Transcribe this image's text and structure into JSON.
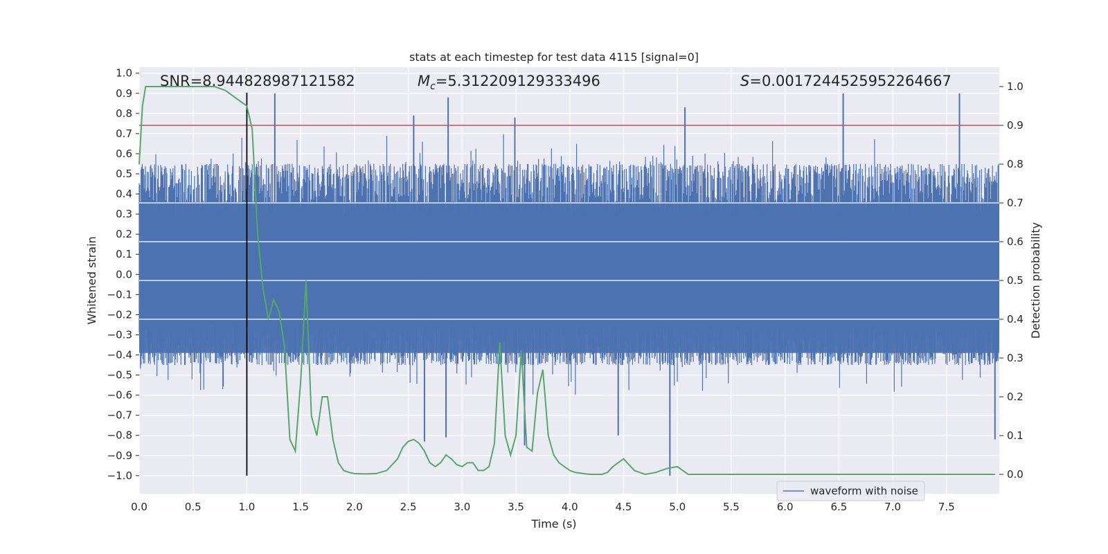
{
  "chart_data": {
    "type": "line",
    "title": "stats at each timestep for test data 4115 [signal=0]",
    "xlabel": "Time (s)",
    "ylabel_left": "Whitened strain",
    "ylabel_right": "Detection probability",
    "xlim": [
      0.0,
      7.99
    ],
    "ylim_left": [
      -1.09,
      1.03
    ],
    "ylim_right": [
      -0.05,
      1.05
    ],
    "x_ticks": [
      "0.0",
      "0.5",
      "1.0",
      "1.5",
      "2.0",
      "2.5",
      "3.0",
      "3.5",
      "4.0",
      "4.5",
      "5.0",
      "5.5",
      "6.0",
      "6.5",
      "7.0",
      "7.5"
    ],
    "x_tick_values": [
      0.0,
      0.5,
      1.0,
      1.5,
      2.0,
      2.5,
      3.0,
      3.5,
      4.0,
      4.5,
      5.0,
      5.5,
      6.0,
      6.5,
      7.0,
      7.5
    ],
    "y_left_ticks": [
      "1.0",
      "0.9",
      "0.8",
      "0.7",
      "0.6",
      "0.5",
      "0.4",
      "0.3",
      "0.2",
      "0.1",
      "0.0",
      "−0.1",
      "−0.2",
      "−0.3",
      "−0.4",
      "−0.5",
      "−0.6",
      "−0.7",
      "−0.8",
      "−0.9",
      "−1.0"
    ],
    "y_left_tick_values": [
      1.0,
      0.9,
      0.8,
      0.7,
      0.6,
      0.5,
      0.4,
      0.3,
      0.2,
      0.1,
      0.0,
      -0.1,
      -0.2,
      -0.3,
      -0.4,
      -0.5,
      -0.6,
      -0.7,
      -0.8,
      -0.9,
      -1.0
    ],
    "y_right_ticks": [
      "1.0",
      "0.9",
      "0.8",
      "0.7",
      "0.6",
      "0.5",
      "0.4",
      "0.3",
      "0.2",
      "0.1",
      "0.0"
    ],
    "y_right_tick_values": [
      1.0,
      0.9,
      0.8,
      0.7,
      0.6,
      0.5,
      0.4,
      0.3,
      0.2,
      0.1,
      0.0
    ],
    "annotations": {
      "snr": "SNR=8.944828987121582",
      "mc_symbol": "M",
      "mc_subscript": "c",
      "mc_value": "=5.312209129333496",
      "s_symbol": "S",
      "s_value": "=0.0017244525952264667"
    },
    "threshold": 0.9,
    "marker_time": 1.0,
    "series": [
      {
        "name": "waveform with noise",
        "axis": "left",
        "color": "#4c72b0",
        "kind": "noise",
        "typical_range": [
          -0.45,
          0.55
        ],
        "peaks": [
          {
            "t": 1.26,
            "v": 0.9
          },
          {
            "t": 2.87,
            "v": 0.88
          },
          {
            "t": 6.54,
            "v": 0.9
          },
          {
            "t": 7.62,
            "v": 0.9
          },
          {
            "t": 5.07,
            "v": 0.83
          },
          {
            "t": 2.55,
            "v": 0.79
          },
          {
            "t": 3.49,
            "v": 0.78
          },
          {
            "t": 4.93,
            "v": -1.0
          },
          {
            "t": 2.65,
            "v": -0.83
          },
          {
            "t": 2.85,
            "v": -0.81
          },
          {
            "t": 3.58,
            "v": -0.85
          },
          {
            "t": 4.45,
            "v": -0.8
          },
          {
            "t": 7.95,
            "v": -0.82
          }
        ]
      },
      {
        "name": "detection probability",
        "axis": "right",
        "color": "#55a868",
        "x": [
          0.0,
          0.03,
          0.06,
          0.12,
          0.2,
          0.3,
          0.4,
          0.5,
          0.6,
          0.7,
          0.8,
          0.85,
          0.9,
          0.95,
          1.0,
          1.05,
          1.1,
          1.15,
          1.2,
          1.25,
          1.3,
          1.35,
          1.4,
          1.45,
          1.5,
          1.55,
          1.6,
          1.65,
          1.7,
          1.75,
          1.8,
          1.85,
          1.9,
          1.95,
          2.0,
          2.1,
          2.2,
          2.3,
          2.4,
          2.45,
          2.5,
          2.55,
          2.6,
          2.65,
          2.7,
          2.75,
          2.8,
          2.85,
          2.9,
          2.95,
          3.0,
          3.05,
          3.1,
          3.15,
          3.2,
          3.25,
          3.3,
          3.35,
          3.4,
          3.45,
          3.5,
          3.55,
          3.6,
          3.65,
          3.7,
          3.75,
          3.8,
          3.85,
          3.9,
          3.95,
          4.0,
          4.05,
          4.1,
          4.15,
          4.2,
          4.25,
          4.3,
          4.35,
          4.4,
          4.5,
          4.6,
          4.7,
          4.8,
          4.9,
          5.0,
          5.1,
          5.2,
          5.25,
          5.3,
          5.35,
          5.4,
          5.45,
          5.5,
          5.55,
          5.6,
          5.65,
          5.7,
          5.8,
          6.0,
          6.2,
          6.4,
          6.6,
          6.8,
          7.0,
          7.2,
          7.4,
          7.6,
          7.8,
          7.95
        ],
        "values": [
          0.8,
          0.95,
          1.0,
          1.0,
          1.0,
          1.0,
          1.0,
          1.0,
          1.0,
          1.0,
          0.99,
          0.98,
          0.97,
          0.96,
          0.95,
          0.89,
          0.62,
          0.48,
          0.4,
          0.45,
          0.42,
          0.33,
          0.09,
          0.06,
          0.24,
          0.5,
          0.15,
          0.1,
          0.2,
          0.2,
          0.09,
          0.03,
          0.01,
          0.005,
          0.002,
          0.001,
          0.002,
          0.01,
          0.04,
          0.07,
          0.085,
          0.09,
          0.08,
          0.06,
          0.03,
          0.02,
          0.03,
          0.05,
          0.04,
          0.025,
          0.02,
          0.03,
          0.03,
          0.01,
          0.01,
          0.02,
          0.08,
          0.34,
          0.1,
          0.05,
          0.1,
          0.32,
          0.07,
          0.06,
          0.21,
          0.27,
          0.1,
          0.05,
          0.03,
          0.02,
          0.01,
          0.005,
          0.003,
          0.001,
          0.0,
          0.0,
          0.0,
          0.005,
          0.02,
          0.04,
          0.01,
          0.0,
          0.005,
          0.015,
          0.02,
          0.0,
          0.0,
          0.0,
          0.0,
          0.0,
          0.0,
          0.0,
          0.0,
          0.0,
          0.0,
          0.0,
          0.0,
          0.0,
          0.0,
          0.0,
          0.0,
          0.0,
          0.0,
          0.0,
          0.0,
          0.0,
          0.0,
          0.0,
          0.0
        ]
      },
      {
        "name": "threshold",
        "axis": "right",
        "color": "#c44e52",
        "value": 0.9
      }
    ],
    "legend": {
      "entries": [
        "waveform with noise"
      ],
      "location": "lower-right"
    }
  }
}
